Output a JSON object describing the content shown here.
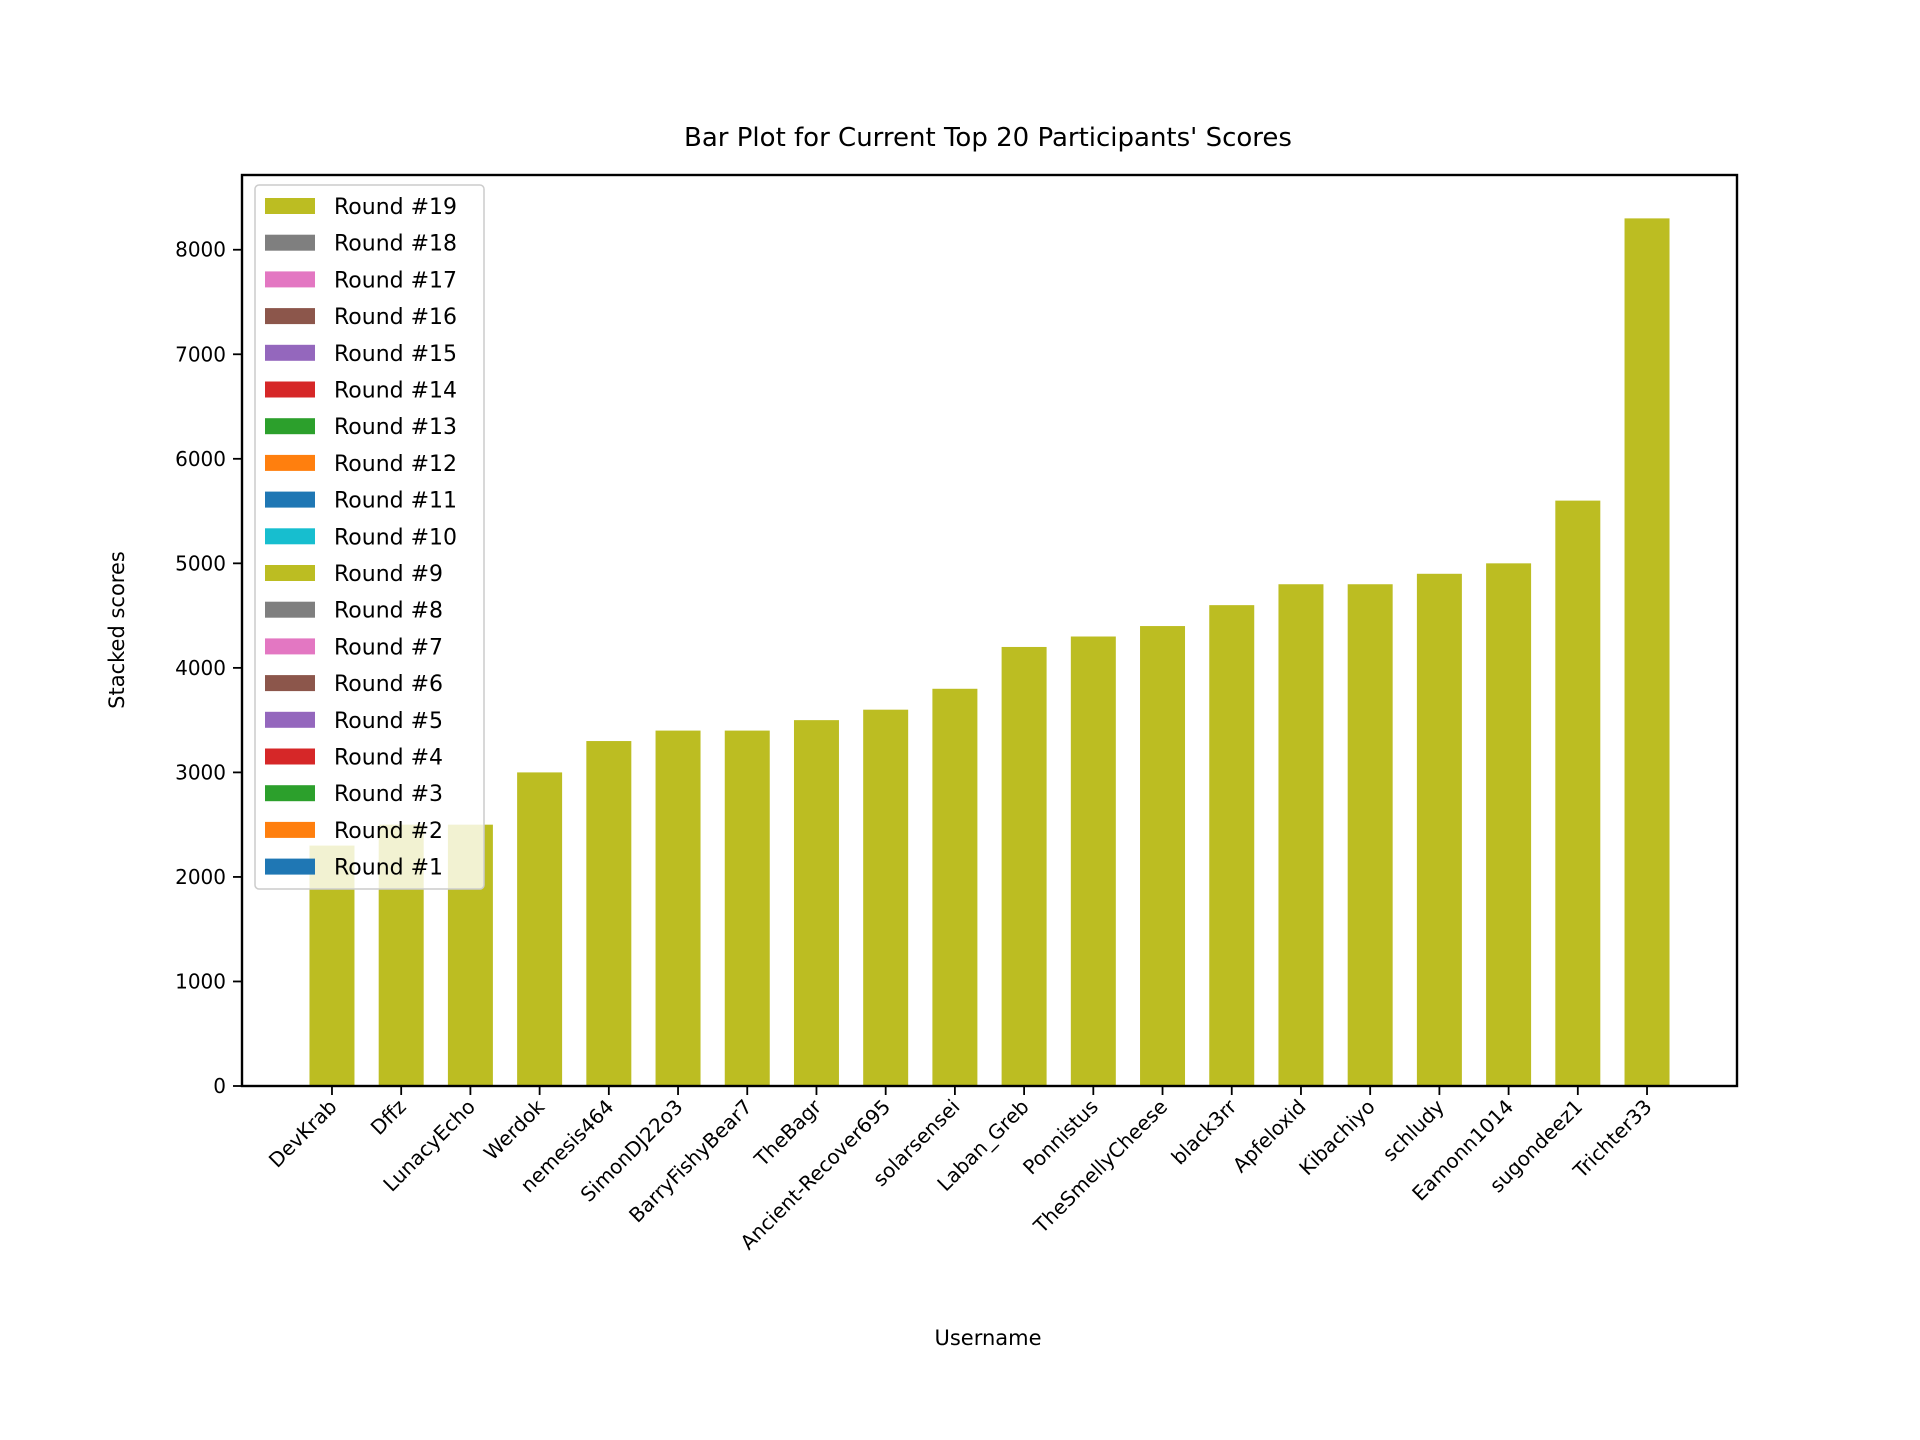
{
  "chart_data": {
    "type": "bar",
    "stacked": true,
    "title": "Bar Plot for Current Top 20 Participants' Scores",
    "xlabel": "Username",
    "ylabel": "Stacked scores",
    "categories": [
      "DevKrab",
      "Dffz",
      "LunacyEcho",
      "Werdok",
      "nemesis464",
      "SimonDJ22o3",
      "BarryFishyBear7",
      "TheBagr",
      "Ancient-Recover695",
      "solarsensei",
      "Laban_Greb",
      "Ponnistus",
      "TheSmellyCheese",
      "black3rr",
      "Apfeloxid",
      "Kibachiyo",
      "schludy",
      "Eamonn1014",
      "sugondeez1",
      "Trichter33"
    ],
    "totals": [
      2300,
      2500,
      2500,
      3000,
      3300,
      3400,
      3400,
      3500,
      3600,
      3800,
      4200,
      4300,
      4400,
      4600,
      4800,
      4800,
      4900,
      5000,
      5600,
      8300
    ],
    "visible_series_color": "#bcbd22",
    "ylim": [
      0,
      8715
    ],
    "xlim": [
      -1.3,
      20.3
    ],
    "yticks": [
      0,
      1000,
      2000,
      3000,
      4000,
      5000,
      6000,
      7000,
      8000
    ],
    "grid": false,
    "legend_placement": "upper-left",
    "legend": [
      {
        "label": "Round #19",
        "color": "#bcbd22"
      },
      {
        "label": "Round #18",
        "color": "#7f7f7f"
      },
      {
        "label": "Round #17",
        "color": "#e377c2"
      },
      {
        "label": "Round #16",
        "color": "#8c564b"
      },
      {
        "label": "Round #15",
        "color": "#9467bd"
      },
      {
        "label": "Round #14",
        "color": "#d62728"
      },
      {
        "label": "Round #13",
        "color": "#2ca02c"
      },
      {
        "label": "Round #12",
        "color": "#ff7f0e"
      },
      {
        "label": "Round #11",
        "color": "#1f77b4"
      },
      {
        "label": "Round #10",
        "color": "#17becf"
      },
      {
        "label": "Round #9",
        "color": "#bcbd22"
      },
      {
        "label": "Round #8",
        "color": "#7f7f7f"
      },
      {
        "label": "Round #7",
        "color": "#e377c2"
      },
      {
        "label": "Round #6",
        "color": "#8c564b"
      },
      {
        "label": "Round #5",
        "color": "#9467bd"
      },
      {
        "label": "Round #4",
        "color": "#d62728"
      },
      {
        "label": "Round #3",
        "color": "#2ca02c"
      },
      {
        "label": "Round #2",
        "color": "#ff7f0e"
      },
      {
        "label": "Round #1",
        "color": "#1f77b4"
      }
    ]
  }
}
